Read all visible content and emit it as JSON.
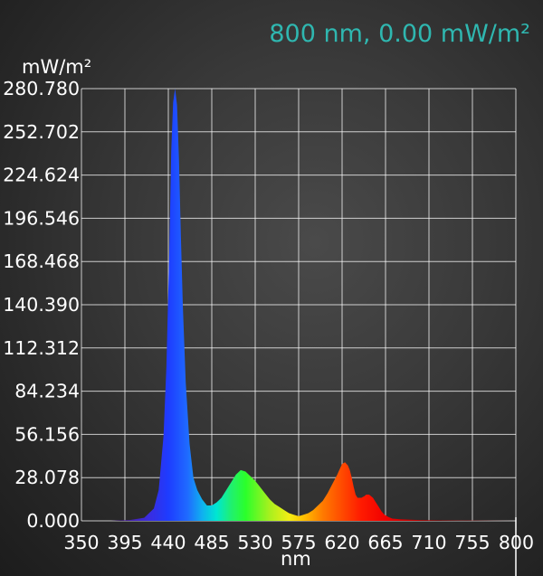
{
  "readout": "800 nm, 0.00 mW/m²",
  "chart_data": {
    "type": "area",
    "title": "",
    "xlabel": "nm",
    "ylabel": "mW/m²",
    "xlim": [
      350,
      800
    ],
    "ylim": [
      0,
      280.78
    ],
    "grid": true,
    "x_ticks": [
      "350",
      "395",
      "440",
      "485",
      "530",
      "575",
      "620",
      "665",
      "710",
      "755",
      "800"
    ],
    "y_ticks": [
      "280.780",
      "252.702",
      "224.624",
      "196.546",
      "168.468",
      "140.390",
      "112.312",
      "84.234",
      "56.156",
      "28.078",
      "0.000"
    ],
    "cursor_x": 800,
    "series": [
      {
        "x": [
          350,
          380,
          400,
          415,
          425,
          430,
          435,
          438,
          441,
          443,
          445,
          447,
          449,
          451,
          453,
          455,
          458,
          462,
          466,
          470,
          475,
          480,
          485,
          490,
          495,
          500,
          505,
          510,
          515,
          520,
          525,
          530,
          535,
          540,
          545,
          550,
          555,
          560,
          565,
          570,
          575,
          580,
          585,
          590,
          595,
          600,
          605,
          610,
          615,
          620,
          623,
          626,
          628,
          630,
          632,
          634,
          636,
          640,
          643,
          645,
          648,
          650,
          652,
          655,
          658,
          661,
          664,
          668,
          672,
          680,
          700,
          720,
          750,
          780,
          800
        ],
        "y": [
          0,
          0,
          0.5,
          2,
          8,
          20,
          55,
          100,
          175,
          240,
          272,
          280.78,
          270,
          235,
          185,
          140,
          90,
          50,
          28,
          20,
          14,
          10,
          10,
          12,
          15,
          20,
          25,
          30,
          33,
          32,
          29,
          26,
          22,
          18,
          14,
          11,
          9,
          7,
          5,
          4,
          3,
          4,
          5,
          7,
          10,
          13,
          18,
          24,
          30,
          37,
          38,
          36,
          33,
          28,
          22,
          17,
          15,
          15,
          16,
          17,
          17,
          16,
          15,
          12,
          9,
          6,
          4,
          2.5,
          1.5,
          1,
          0.5,
          0.3,
          0.2,
          0.1,
          0
        ]
      }
    ]
  }
}
